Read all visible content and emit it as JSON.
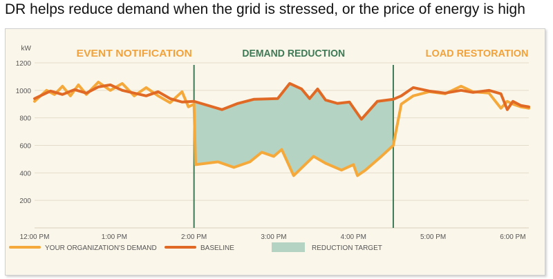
{
  "caption": "DR helps reduce demand when the grid is stressed, or the price of energy is high",
  "colors": {
    "panel_bg": "#fbf6ea",
    "demand": "#f5a93b",
    "baseline": "#e06a25",
    "reduction_fill": "#b4d3c2",
    "divider": "#3d7a55",
    "phase_orange": "#f0a33d",
    "phase_green": "#3d7a55",
    "grid": "#e4dccb",
    "text": "#555555"
  },
  "chart_data": {
    "type": "line",
    "ylabel": "kW",
    "ylim": [
      0,
      1200
    ],
    "yticks": [
      200,
      400,
      600,
      800,
      1000,
      1200
    ],
    "xticks": [
      "12:00 PM",
      "1:00 PM",
      "2:00 PM",
      "3:00 PM",
      "4:00 PM",
      "5:00 PM",
      "6:00 PM"
    ],
    "xlim": [
      0,
      6.2
    ],
    "grid": true,
    "legend_position": "bottom",
    "phases": [
      {
        "label": "EVENT NOTIFICATION",
        "start": 0,
        "end": 2,
        "color": "#f0a33d"
      },
      {
        "label": "DEMAND REDUCTION",
        "start": 2,
        "end": 4.5,
        "color": "#3d7a55"
      },
      {
        "label": "LOAD RESTORATION",
        "start": 4.5,
        "end": 6.2,
        "color": "#f0a33d"
      }
    ],
    "reduction_window": [
      2,
      4.5
    ],
    "series": [
      {
        "name": "BASELINE",
        "color": "#e06a25",
        "x": [
          0,
          0.2,
          0.35,
          0.5,
          0.65,
          0.8,
          0.95,
          1.1,
          1.25,
          1.4,
          1.55,
          1.7,
          1.85,
          2.0,
          2.35,
          2.55,
          2.75,
          3.05,
          3.2,
          3.35,
          3.45,
          3.55,
          3.65,
          3.8,
          3.95,
          4.1,
          4.3,
          4.5,
          4.6,
          4.75,
          4.95,
          5.15,
          5.35,
          5.5,
          5.7,
          5.85,
          5.93,
          6.0,
          6.1,
          6.2
        ],
        "y": [
          940,
          995,
          970,
          1005,
          980,
          1025,
          1040,
          1000,
          980,
          960,
          990,
          940,
          915,
          920,
          860,
          905,
          935,
          940,
          1050,
          1010,
          940,
          1010,
          930,
          905,
          915,
          790,
          920,
          935,
          960,
          1020,
          995,
          980,
          1000,
          985,
          1000,
          975,
          860,
          920,
          890,
          880
        ]
      },
      {
        "name": "YOUR ORGANIZATION'S DEMAND",
        "color": "#f5a93b",
        "x": [
          0,
          0.15,
          0.25,
          0.35,
          0.45,
          0.55,
          0.65,
          0.8,
          0.95,
          1.1,
          1.25,
          1.4,
          1.55,
          1.7,
          1.85,
          1.93,
          2.0,
          2.02,
          2.3,
          2.5,
          2.7,
          2.85,
          3.0,
          3.1,
          3.25,
          3.5,
          3.65,
          3.85,
          4.0,
          4.05,
          4.15,
          4.35,
          4.5,
          4.6,
          4.75,
          4.95,
          5.15,
          5.35,
          5.5,
          5.7,
          5.85,
          5.93,
          6.0,
          6.1,
          6.2
        ],
        "y": [
          920,
          1000,
          970,
          1030,
          960,
          1040,
          970,
          1060,
          1000,
          1050,
          960,
          1020,
          960,
          910,
          990,
          880,
          900,
          460,
          480,
          440,
          480,
          550,
          520,
          570,
          380,
          520,
          470,
          420,
          460,
          380,
          420,
          520,
          600,
          900,
          960,
          990,
          975,
          1030,
          990,
          980,
          870,
          920,
          900,
          880,
          870
        ]
      }
    ]
  },
  "legend": [
    {
      "label": "YOUR ORGANIZATION'S DEMAND",
      "kind": "line",
      "color": "#f5a93b"
    },
    {
      "label": "BASELINE",
      "kind": "line",
      "color": "#e06a25"
    },
    {
      "label": "REDUCTION TARGET",
      "kind": "patch",
      "color": "#b4d3c2"
    }
  ]
}
